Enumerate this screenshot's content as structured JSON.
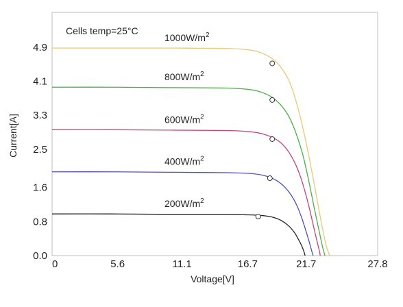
{
  "chart_data": {
    "type": "line",
    "title": "",
    "xlabel": "Voltage[V]",
    "ylabel": "Current[A]",
    "annotation": "Cells temp=25°C",
    "xlim": [
      0,
      27.8
    ],
    "ylim": [
      0,
      5.72
    ],
    "x_ticks": [
      "0",
      "5.6",
      "11.1",
      "16.7",
      "21.7",
      "27.8"
    ],
    "x_tick_values": [
      0,
      5.6,
      11.1,
      16.7,
      21.7,
      27.8
    ],
    "y_ticks": [
      "0.0",
      "0.8",
      "1.6",
      "2.5",
      "3.3",
      "4.1",
      "4.9"
    ],
    "y_tick_values": [
      0.0,
      0.8,
      1.6,
      2.5,
      3.3,
      4.1,
      4.9
    ],
    "grid": false,
    "legend": "inline labels above each curve",
    "series": [
      {
        "name": "1000W/m²",
        "name_base": "1000W/m",
        "name_sup": "2",
        "color": "#e9c878",
        "x": [
          0,
          5,
          10,
          15,
          17,
          18,
          18.8,
          19.5,
          20.2,
          20.8,
          21.4,
          22.0,
          22.6,
          23.0,
          23.4,
          23.7
        ],
        "y": [
          4.88,
          4.88,
          4.88,
          4.87,
          4.83,
          4.75,
          4.63,
          4.44,
          4.13,
          3.66,
          3.02,
          2.24,
          1.36,
          0.76,
          0.24,
          0.0
        ],
        "mpp": [
          18.8,
          4.52
        ]
      },
      {
        "name": "800W/m²",
        "name_base": "800W/m",
        "name_sup": "2",
        "color": "#4bad45",
        "x": [
          0,
          5,
          10,
          15,
          17,
          18,
          18.8,
          19.5,
          20.2,
          20.8,
          21.4,
          21.9,
          22.4,
          22.8,
          23.1,
          23.3
        ],
        "y": [
          3.96,
          3.96,
          3.95,
          3.94,
          3.9,
          3.83,
          3.72,
          3.55,
          3.28,
          2.9,
          2.38,
          1.78,
          1.1,
          0.58,
          0.2,
          0.0
        ],
        "mpp": [
          18.8,
          3.66
        ]
      },
      {
        "name": "600W/m²",
        "name_base": "600W/m",
        "name_sup": "2",
        "color": "#c9407a",
        "x": [
          0,
          5,
          10,
          15,
          17,
          18,
          18.8,
          19.5,
          20.2,
          20.8,
          21.3,
          21.8,
          22.2,
          22.5,
          22.8,
          22.9
        ],
        "y": [
          2.96,
          2.96,
          2.95,
          2.94,
          2.91,
          2.86,
          2.78,
          2.66,
          2.44,
          2.14,
          1.78,
          1.3,
          0.84,
          0.48,
          0.14,
          0.0
        ],
        "mpp": [
          18.8,
          2.74
        ]
      },
      {
        "name": "400W/m²",
        "name_base": "400W/m",
        "name_sup": "2",
        "color": "#4a4fbf",
        "x": [
          0,
          5,
          10,
          15,
          17,
          18,
          18.6,
          19.2,
          19.8,
          20.4,
          20.9,
          21.3,
          21.7,
          22.0,
          22.2,
          22.3
        ],
        "y": [
          1.97,
          1.97,
          1.96,
          1.95,
          1.93,
          1.89,
          1.84,
          1.76,
          1.63,
          1.43,
          1.18,
          0.9,
          0.56,
          0.28,
          0.08,
          0.0
        ],
        "mpp": [
          18.6,
          1.82
        ]
      },
      {
        "name": "200W/m²",
        "name_base": "200W/m",
        "name_sup": "2",
        "color": "#222222",
        "x": [
          0,
          5,
          10,
          15,
          16.5,
          17.5,
          18.3,
          19.0,
          19.6,
          20.2,
          20.7,
          21.0,
          21.3,
          21.5,
          21.6
        ],
        "y": [
          0.98,
          0.98,
          0.97,
          0.97,
          0.96,
          0.95,
          0.93,
          0.89,
          0.82,
          0.7,
          0.54,
          0.4,
          0.24,
          0.1,
          0.0
        ],
        "mpp": [
          17.6,
          0.92
        ]
      }
    ]
  }
}
